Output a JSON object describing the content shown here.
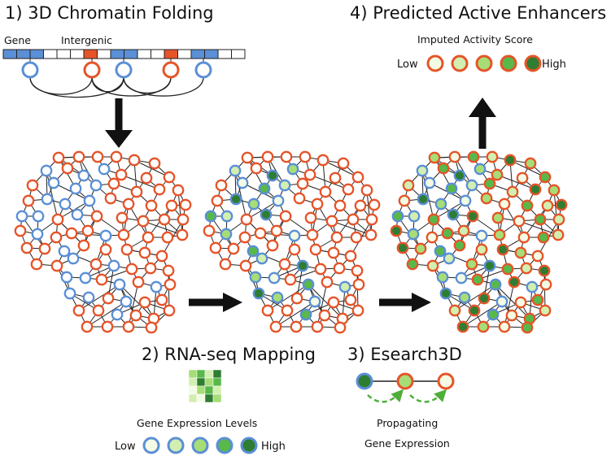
{
  "titles": {
    "step1": "1) 3D Chromatin Folding",
    "step2": "2) RNA-seq Mapping",
    "step3": "3) Esearch3D",
    "step4": "4) Predicted Active Enhancers"
  },
  "track": {
    "gene_label": "Gene",
    "intergenic_label": "Intergenic",
    "cell_types": [
      "gene",
      "gene",
      "gene",
      "blank",
      "blank",
      "blank",
      "enh",
      "blank",
      "gene",
      "gene",
      "blank",
      "blank",
      "enh",
      "blank",
      "gene",
      "gene",
      "blank",
      "blank"
    ]
  },
  "legend_expression": {
    "title": "Gene Expression Levels",
    "low": "Low",
    "high": "High",
    "levels": [
      "#f3fbe4",
      "#d2efb1",
      "#a7dd77",
      "#58b84a",
      "#2f7d32"
    ]
  },
  "legend_activity": {
    "title": "Imputed Activity Score",
    "low": "Low",
    "high": "High",
    "levels": [
      "#f3fbe4",
      "#d2efb1",
      "#a7dd77",
      "#58b84a",
      "#2f7d32"
    ]
  },
  "esearch": {
    "caption_line1": "Propagating",
    "caption_line2": "Gene Expression"
  },
  "colors": {
    "gene": "#5b8fd6",
    "enhancer": "#e65428",
    "edge": "#222222",
    "arrow": "#111111",
    "propagation": "#4eae3a"
  },
  "heatmap": [
    [
      "#a7dd77",
      "#58b84a",
      "#d2efb1",
      "#2f7d32"
    ],
    [
      "#d2efb1",
      "#2f7d32",
      "#a7dd77",
      "#58b84a"
    ],
    [
      "#f3fbe4",
      "#a7dd77",
      "#58b84a",
      "#d2efb1"
    ],
    [
      "#d2efb1",
      "#f3fbe4",
      "#2f7d32",
      "#a7dd77"
    ]
  ]
}
